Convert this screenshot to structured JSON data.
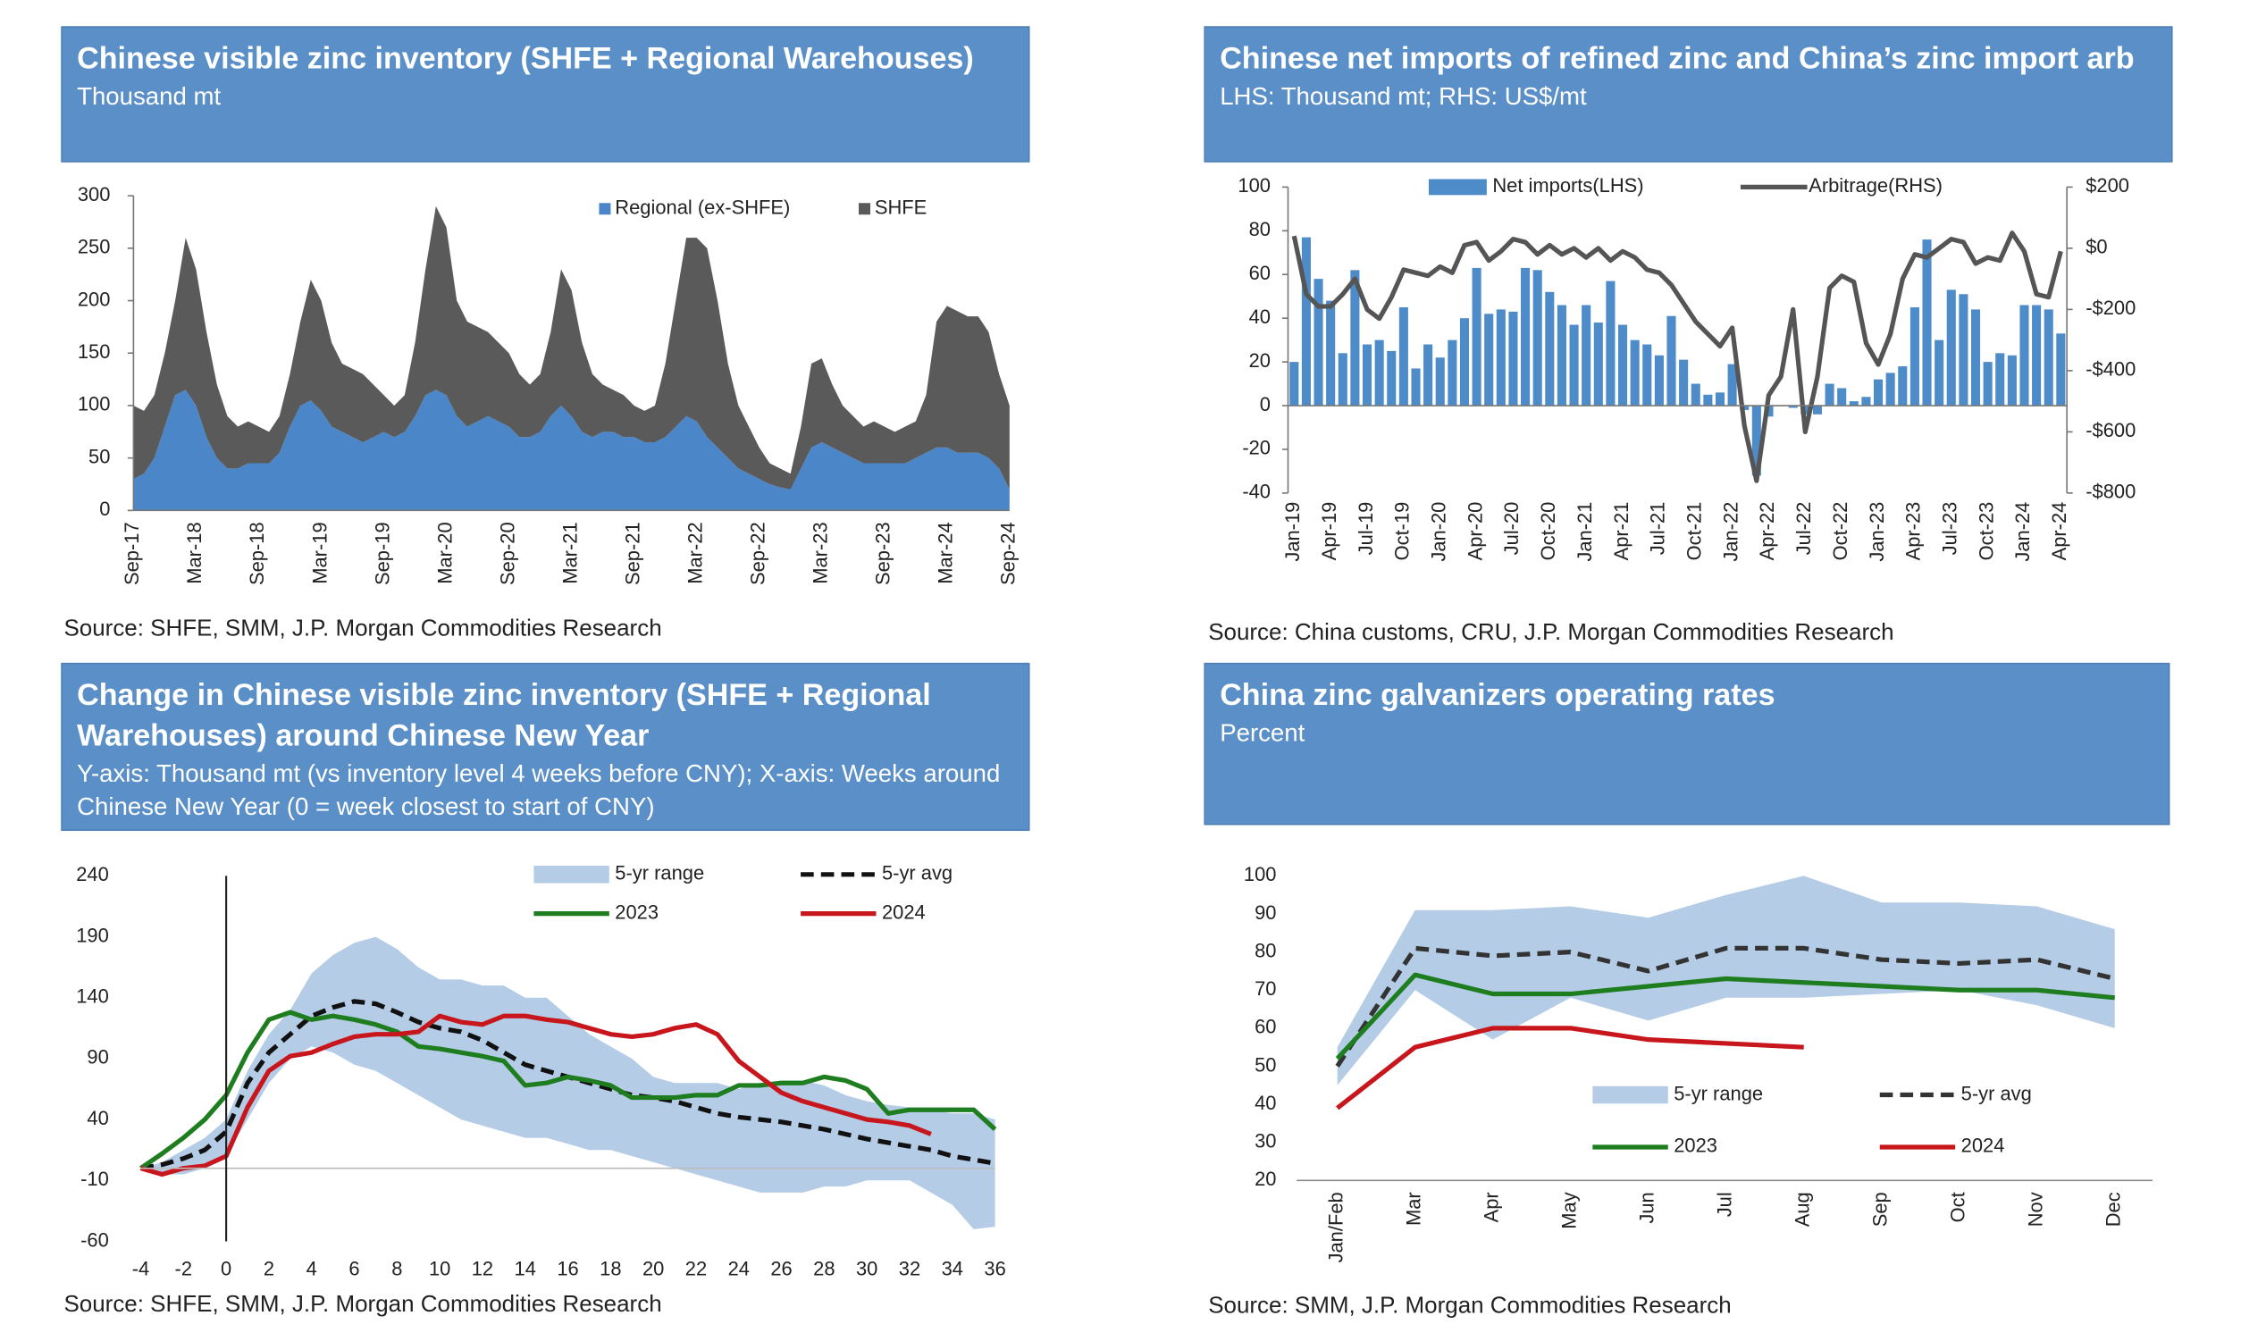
{
  "chart_data": [
    {
      "type": "area",
      "title": "Chinese visible zinc inventory (SHFE + Regional Warehouses)",
      "subtitle": "Thousand mt",
      "source": "Source: SHFE, SMM, J.P. Morgan Commodities Research",
      "categories": [
        "Sep-17",
        null,
        null,
        null,
        null,
        null,
        "Mar-18",
        null,
        null,
        null,
        null,
        null,
        "Sep-18",
        null,
        null,
        null,
        null,
        null,
        "Mar-19",
        null,
        null,
        null,
        null,
        null,
        "Sep-19",
        null,
        null,
        null,
        null,
        null,
        "Mar-20",
        null,
        null,
        null,
        null,
        null,
        "Sep-20",
        null,
        null,
        null,
        null,
        null,
        "Mar-21",
        null,
        null,
        null,
        null,
        null,
        "Sep-21",
        null,
        null,
        null,
        null,
        null,
        "Mar-22",
        null,
        null,
        null,
        null,
        null,
        "Sep-22",
        null,
        null,
        null,
        null,
        null,
        "Mar-23",
        null,
        null,
        null,
        null,
        null,
        "Sep-23",
        null,
        null,
        null,
        null,
        null,
        "Mar-24",
        null,
        null,
        null,
        null,
        null,
        "Sep-24"
      ],
      "series": [
        {
          "name": "Regional (ex-SHFE)",
          "color": "#4a86c8",
          "values": [
            30,
            35,
            50,
            80,
            110,
            115,
            100,
            70,
            50,
            40,
            40,
            45,
            45,
            45,
            55,
            80,
            100,
            105,
            95,
            80,
            75,
            70,
            65,
            70,
            75,
            70,
            75,
            90,
            110,
            115,
            110,
            90,
            80,
            85,
            90,
            85,
            80,
            70,
            70,
            75,
            90,
            100,
            90,
            75,
            70,
            75,
            75,
            70,
            70,
            65,
            65,
            70,
            80,
            90,
            85,
            70,
            60,
            50,
            40,
            35,
            30,
            25,
            22,
            20,
            40,
            60,
            65,
            60,
            55,
            50,
            45,
            45,
            45,
            45,
            45,
            50,
            55,
            60,
            60,
            55,
            55,
            55,
            50,
            40,
            20
          ]
        },
        {
          "name": "SHFE",
          "color": "#5a5a5a",
          "values": [
            70,
            60,
            60,
            70,
            90,
            145,
            130,
            100,
            70,
            50,
            40,
            40,
            35,
            30,
            35,
            50,
            80,
            115,
            105,
            80,
            65,
            65,
            65,
            50,
            35,
            30,
            35,
            70,
            120,
            175,
            160,
            110,
            100,
            90,
            80,
            75,
            70,
            60,
            50,
            55,
            80,
            130,
            120,
            85,
            60,
            45,
            40,
            40,
            30,
            30,
            35,
            70,
            120,
            170,
            175,
            180,
            140,
            90,
            60,
            45,
            30,
            20,
            18,
            15,
            40,
            80,
            80,
            60,
            45,
            40,
            35,
            40,
            35,
            30,
            35,
            35,
            55,
            120,
            135,
            135,
            130,
            130,
            120,
            90,
            80
          ]
        }
      ],
      "ylim": [
        0,
        300
      ],
      "yticks": [
        0,
        50,
        100,
        150,
        200,
        250,
        300
      ]
    },
    {
      "type": "combo",
      "title": "Chinese net imports of refined zinc and China’s zinc import arb",
      "subtitle": "LHS: Thousand mt; RHS: US$/mt",
      "source": "Source: China customs, CRU, J.P. Morgan Commodities Research",
      "categories": [
        "Jan-19",
        null,
        null,
        "Apr-19",
        null,
        null,
        "Jul-19",
        null,
        null,
        "Oct-19",
        null,
        null,
        "Jan-20",
        null,
        null,
        "Apr-20",
        null,
        null,
        "Jul-20",
        null,
        null,
        "Oct-20",
        null,
        null,
        "Jan-21",
        null,
        null,
        "Apr-21",
        null,
        null,
        "Jul-21",
        null,
        null,
        "Oct-21",
        null,
        null,
        "Jan-22",
        null,
        null,
        "Apr-22",
        null,
        null,
        "Jul-22",
        null,
        null,
        "Oct-22",
        null,
        null,
        "Jan-23",
        null,
        null,
        "Apr-23",
        null,
        null,
        "Jul-23",
        null,
        null,
        "Oct-23",
        null,
        null,
        "Jan-24",
        null,
        null,
        "Apr-24"
      ],
      "series": [
        {
          "name": "Net imports(LHS)",
          "color": "#4e8bc9",
          "axis": "y",
          "values": [
            20,
            77,
            58,
            48,
            24,
            62,
            28,
            30,
            25,
            45,
            17,
            28,
            22,
            30,
            40,
            63,
            42,
            44,
            43,
            63,
            62,
            52,
            46,
            37,
            46,
            38,
            57,
            37,
            30,
            28,
            23,
            41,
            21,
            10,
            5,
            6,
            19,
            -2,
            -32,
            -5,
            0,
            -1,
            -4,
            -4,
            10,
            8,
            2,
            4,
            12,
            15,
            18,
            45,
            76,
            30,
            53,
            51,
            44,
            20,
            24,
            23,
            46,
            46,
            44,
            33
          ]
        },
        {
          "name": "Arbitrage(RHS)",
          "color": "#555555",
          "axis": "y2",
          "values": [
            40,
            -150,
            -190,
            -190,
            -150,
            -100,
            -200,
            -230,
            -160,
            -70,
            -80,
            -90,
            -60,
            -80,
            10,
            20,
            -40,
            -10,
            30,
            20,
            -20,
            10,
            -20,
            0,
            -30,
            0,
            -40,
            -10,
            -30,
            -70,
            -80,
            -120,
            -180,
            -240,
            -280,
            -320,
            -260,
            -580,
            -760,
            -480,
            -420,
            -200,
            -600,
            -420,
            -130,
            -90,
            -110,
            -310,
            -380,
            -280,
            -100,
            -20,
            -30,
            0,
            30,
            20,
            -50,
            -30,
            -40,
            50,
            -10,
            -150,
            -160,
            -10
          ]
        }
      ],
      "ylim": [
        -40,
        100
      ],
      "yticks": [
        -40,
        -20,
        0,
        20,
        40,
        60,
        80,
        100
      ],
      "y2lim": [
        -800,
        200
      ],
      "y2ticks": [
        {
          "value": -800,
          "label": "-$800"
        },
        {
          "value": -600,
          "label": "-$600"
        },
        {
          "value": -400,
          "label": "-$400"
        },
        {
          "value": -200,
          "label": "-$200"
        },
        {
          "value": 0,
          "label": "$0"
        },
        {
          "value": 200,
          "label": "$200"
        }
      ]
    },
    {
      "type": "line",
      "title": "Change in Chinese visible zinc inventory (SHFE + Regional Warehouses) around Chinese New Year",
      "subtitle": "Y-axis: Thousand mt (vs inventory level 4 weeks before CNY); X-axis: Weeks around Chinese New Year (0 = week closest to start of CNY)",
      "source": "Source: SHFE, SMM, J.P. Morgan Commodities Research",
      "x": [
        -4,
        -3,
        -2,
        -1,
        0,
        1,
        2,
        3,
        4,
        5,
        6,
        7,
        8,
        9,
        10,
        11,
        12,
        13,
        14,
        15,
        16,
        17,
        18,
        19,
        20,
        21,
        22,
        23,
        24,
        25,
        26,
        27,
        28,
        29,
        30,
        31,
        32,
        33,
        34,
        35,
        36
      ],
      "series": [
        {
          "name": "5-yr range",
          "color": "#b4cce6",
          "low": [
            0,
            -5,
            -5,
            0,
            10,
            40,
            70,
            90,
            100,
            95,
            85,
            80,
            70,
            60,
            50,
            40,
            35,
            30,
            25,
            25,
            20,
            15,
            15,
            10,
            5,
            0,
            -5,
            -10,
            -15,
            -20,
            -20,
            -20,
            -15,
            -15,
            -10,
            -10,
            -10,
            -20,
            -30,
            -50,
            -48
          ],
          "high": [
            0,
            5,
            15,
            25,
            40,
            80,
            110,
            130,
            160,
            175,
            185,
            190,
            180,
            165,
            155,
            155,
            150,
            150,
            140,
            140,
            125,
            110,
            100,
            90,
            75,
            70,
            70,
            70,
            65,
            70,
            72,
            72,
            68,
            60,
            55,
            52,
            50,
            48,
            45,
            45,
            40
          ]
        },
        {
          "name": "5-yr avg",
          "color": "#111111",
          "linestyle": "dashed",
          "values": [
            0,
            3,
            8,
            15,
            30,
            70,
            95,
            110,
            125,
            132,
            137,
            135,
            128,
            120,
            115,
            112,
            105,
            95,
            85,
            80,
            75,
            70,
            65,
            60,
            58,
            55,
            50,
            45,
            42,
            40,
            38,
            35,
            32,
            28,
            24,
            21,
            18,
            15,
            10,
            7,
            4
          ]
        },
        {
          "name": "2023",
          "color": "#1e7d1e",
          "values": [
            0,
            12,
            25,
            40,
            60,
            95,
            122,
            128,
            122,
            125,
            122,
            118,
            112,
            100,
            98,
            95,
            92,
            88,
            68,
            70,
            75,
            72,
            68,
            58,
            58,
            58,
            60,
            60,
            68,
            68,
            70,
            70,
            75,
            72,
            65,
            45,
            48,
            48,
            48,
            48,
            32
          ]
        },
        {
          "name": "2024",
          "color": "#c8161d",
          "values": [
            0,
            -5,
            0,
            2,
            10,
            50,
            80,
            92,
            95,
            102,
            108,
            110,
            110,
            112,
            125,
            120,
            118,
            125,
            125,
            122,
            120,
            115,
            110,
            108,
            110,
            115,
            118,
            110,
            88,
            75,
            62,
            55,
            50,
            45,
            40,
            38,
            35,
            28,
            null,
            null,
            null
          ]
        }
      ],
      "xlim": [
        -4,
        36
      ],
      "xticks": [
        -4,
        -2,
        0,
        2,
        4,
        6,
        8,
        10,
        12,
        14,
        16,
        18,
        20,
        22,
        24,
        26,
        28,
        30,
        32,
        34,
        36
      ],
      "ylim": [
        -60,
        240
      ],
      "yticks": [
        -60,
        -10,
        40,
        90,
        140,
        190,
        240
      ]
    },
    {
      "type": "line",
      "title": "China zinc galvanizers operating rates",
      "subtitle": "Percent",
      "source": "Source: SMM, J.P. Morgan Commodities Research",
      "categories": [
        "Jan/Feb",
        "Mar",
        "Apr",
        "May",
        "Jun",
        "Jul",
        "Aug",
        "Sep",
        "Oct",
        "Nov",
        "Dec"
      ],
      "series": [
        {
          "name": "5-yr range",
          "color": "#b4cce6",
          "low": [
            45,
            70,
            57,
            68,
            62,
            68,
            68,
            69,
            70,
            66,
            60
          ],
          "high": [
            55,
            91,
            91,
            92,
            89,
            95,
            100,
            93,
            93,
            92,
            86
          ]
        },
        {
          "name": "5-yr avg",
          "color": "#333333",
          "linestyle": "dashed",
          "values": [
            50,
            81,
            79,
            80,
            75,
            81,
            81,
            78,
            77,
            78,
            73
          ]
        },
        {
          "name": "2023",
          "color": "#1e7d1e",
          "values": [
            52,
            74,
            69,
            69,
            71,
            73,
            72,
            71,
            70,
            70,
            68
          ]
        },
        {
          "name": "2024",
          "color": "#c8161d",
          "values": [
            39,
            55,
            60,
            60,
            57,
            56,
            55,
            null,
            null,
            null,
            null
          ]
        }
      ],
      "ylim": [
        20,
        100
      ],
      "yticks": [
        20,
        30,
        40,
        50,
        60,
        70,
        80,
        90,
        100
      ]
    }
  ]
}
